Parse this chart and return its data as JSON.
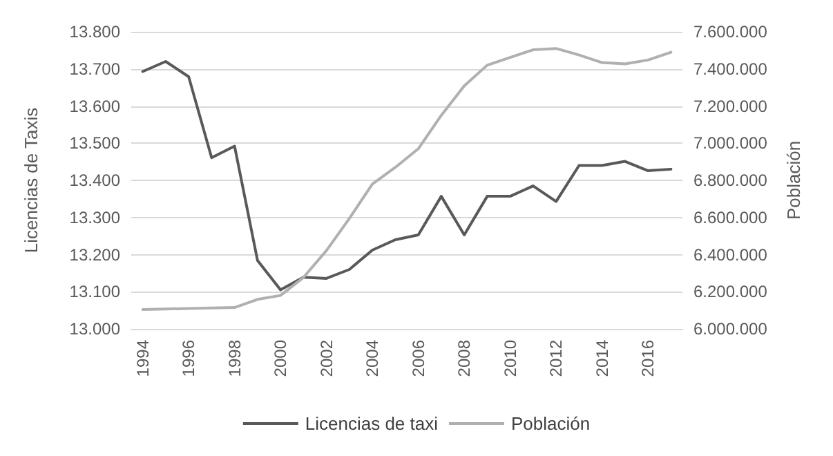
{
  "chart_data": {
    "type": "line",
    "ylabel": "Licencias de Taxis",
    "y2label": "Población",
    "categories": [
      "1994",
      null,
      "1996",
      null,
      "1998",
      null,
      "2000",
      null,
      "2002",
      null,
      "2004",
      null,
      "2006",
      null,
      "2008",
      null,
      "2010",
      null,
      "2012",
      null,
      "2014",
      null,
      "2016",
      null
    ],
    "series": [
      {
        "name": "Licencias de taxi",
        "color": "#595959",
        "values": [
          13693,
          13720,
          13679,
          13461,
          13492,
          13184,
          13105,
          13139,
          13136,
          13160,
          13212,
          13240,
          13253,
          13357,
          13253,
          13357,
          13357,
          13385,
          13343,
          13440,
          13440,
          13451,
          13426,
          13430
        ]
      },
      {
        "name": "Población",
        "color": "#b0b0b0",
        "axis": "y2",
        "values": [
          6104000,
          6107000,
          6110000,
          6113000,
          6115000,
          6159000,
          6180000,
          6277000,
          6422000,
          6595000,
          6780000,
          6870000,
          6970000,
          7150000,
          7309000,
          7420000,
          7462000,
          7503000,
          7510000,
          7475000,
          7434000,
          7427000,
          7448000,
          7490000
        ]
      }
    ],
    "ylim": [
      13000,
      13800
    ],
    "yticks": [
      {
        "value": 13000,
        "label": "13.000"
      },
      {
        "value": 13100,
        "label": "13.100"
      },
      {
        "value": 13200,
        "label": "13.200"
      },
      {
        "value": 13300,
        "label": "13.300"
      },
      {
        "value": 13400,
        "label": "13.400"
      },
      {
        "value": 13500,
        "label": "13.500"
      },
      {
        "value": 13600,
        "label": "13.600"
      },
      {
        "value": 13700,
        "label": "13.700"
      },
      {
        "value": 13800,
        "label": "13.800"
      }
    ],
    "y2lim": [
      6000000,
      7600000
    ],
    "y2ticks": [
      {
        "value": 6000000,
        "label": "6.000.000"
      },
      {
        "value": 6200000,
        "label": "6.200.000"
      },
      {
        "value": 6400000,
        "label": "6.400.000"
      },
      {
        "value": 6600000,
        "label": "6.600.000"
      },
      {
        "value": 6800000,
        "label": "6.800.000"
      },
      {
        "value": 7000000,
        "label": "7.000.000"
      },
      {
        "value": 7200000,
        "label": "7.200.000"
      },
      {
        "value": 7400000,
        "label": "7.400.000"
      },
      {
        "value": 7600000,
        "label": "7.600.000"
      }
    ],
    "grid": "y",
    "legend": "bottom",
    "marker": "none",
    "line_style": "solid"
  }
}
